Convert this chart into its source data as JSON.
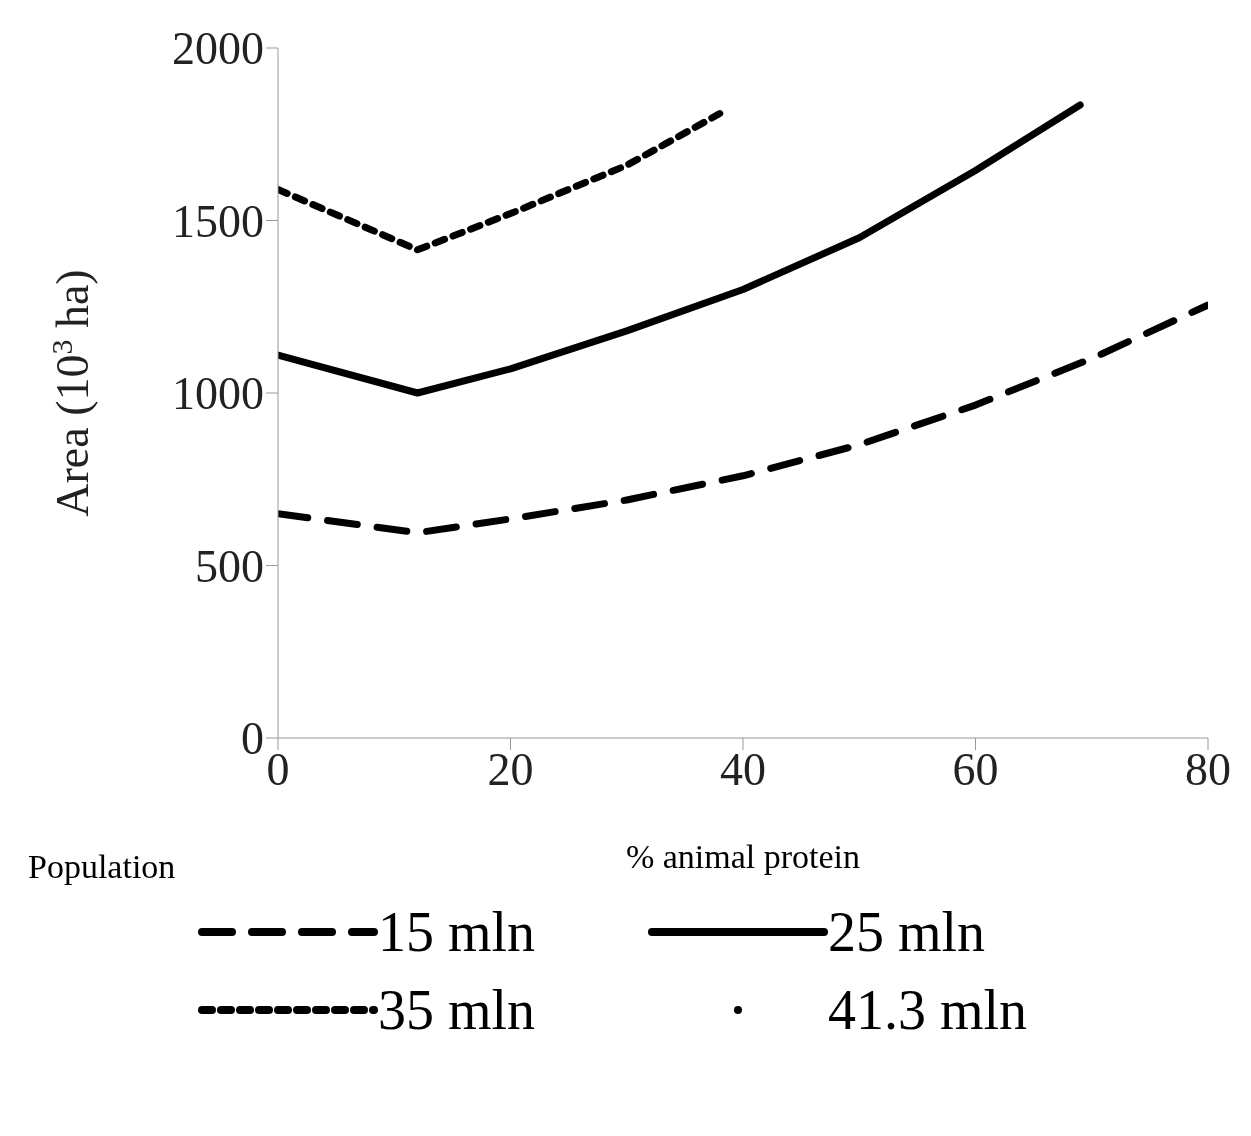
{
  "chart_data": {
    "type": "line",
    "xlabel": "% animal protein",
    "ylabel": "Area (10$^{3}$ ha)",
    "legend_title": "Population",
    "legend": "bottom",
    "grid": false,
    "marker": "none",
    "xlim": [
      0,
      80
    ],
    "xticks": [
      0,
      20,
      40,
      60,
      80
    ],
    "ylim": [
      0,
      2000
    ],
    "yticks": [
      0,
      500,
      1000,
      1500,
      2000
    ],
    "series": [
      {
        "name": "15 mln",
        "color": "#000000",
        "line_style": "dashed",
        "x": [
          0,
          12,
          20,
          30,
          40,
          50,
          60,
          70,
          80
        ],
        "values": [
          650,
          595,
          635,
          690,
          760,
          850,
          965,
          1100,
          1255
        ]
      },
      {
        "name": "25 mln",
        "color": "#000000",
        "line_style": "solid",
        "x": [
          0,
          12,
          20,
          30,
          40,
          50,
          60,
          69
        ],
        "values": [
          1110,
          1000,
          1070,
          1180,
          1300,
          1450,
          1645,
          1835
        ]
      },
      {
        "name": "35 mln",
        "color": "#000000",
        "line_style": "dotted",
        "x": [
          0,
          12,
          20,
          30,
          38
        ],
        "values": [
          1590,
          1415,
          1520,
          1660,
          1810
        ]
      },
      {
        "name": "41.3 mln",
        "color": "#000000",
        "line_style": "none",
        "marker": "circle"
      }
    ]
  }
}
